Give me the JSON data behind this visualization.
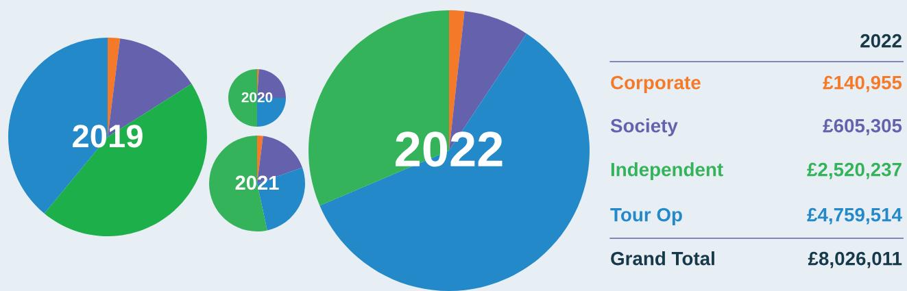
{
  "chart_data": [
    {
      "type": "pie",
      "title": "2019",
      "categories": [
        null,
        null,
        null,
        null
      ],
      "values": [
        2,
        14,
        45,
        39
      ],
      "colors": [
        "#f47a2a",
        "#6462ad",
        "#1db04a",
        "#2389c9"
      ]
    },
    {
      "type": "pie",
      "title": "2020",
      "categories": [
        null,
        null,
        null,
        null
      ],
      "values": [
        1,
        24,
        25,
        50
      ],
      "colors": [
        "#f47a2a",
        "#6462ad",
        "#2389c9",
        "#34b35a"
      ]
    },
    {
      "type": "pie",
      "title": "2021",
      "categories": [
        null,
        null,
        null,
        null
      ],
      "values": [
        2,
        17.6,
        27,
        53.4
      ],
      "colors": [
        "#f47a2a",
        "#6462ad",
        "#2389c9",
        "#34b35a"
      ]
    },
    {
      "type": "pie",
      "title": "2022",
      "categories": [
        null,
        null,
        null,
        null
      ],
      "values": [
        1.756,
        7.542,
        59.301,
        31.401
      ],
      "colors": [
        "#f47a2a",
        "#6462ad",
        "#2389c9",
        "#34b35a"
      ]
    },
    {
      "type": "other",
      "title": "2022",
      "categories": [
        "Corporate",
        "Society",
        "Independent",
        "Tour Op",
        "Grand Total"
      ],
      "value_labels": [
        "£140,955",
        "£605,305",
        "£2,520,237",
        "£4,759,514",
        "£8,026,011"
      ],
      "colors": [
        "#f47a2a",
        "#6462ad",
        "#34b35a",
        "#2389c9",
        "#17394a"
      ]
    }
  ]
}
